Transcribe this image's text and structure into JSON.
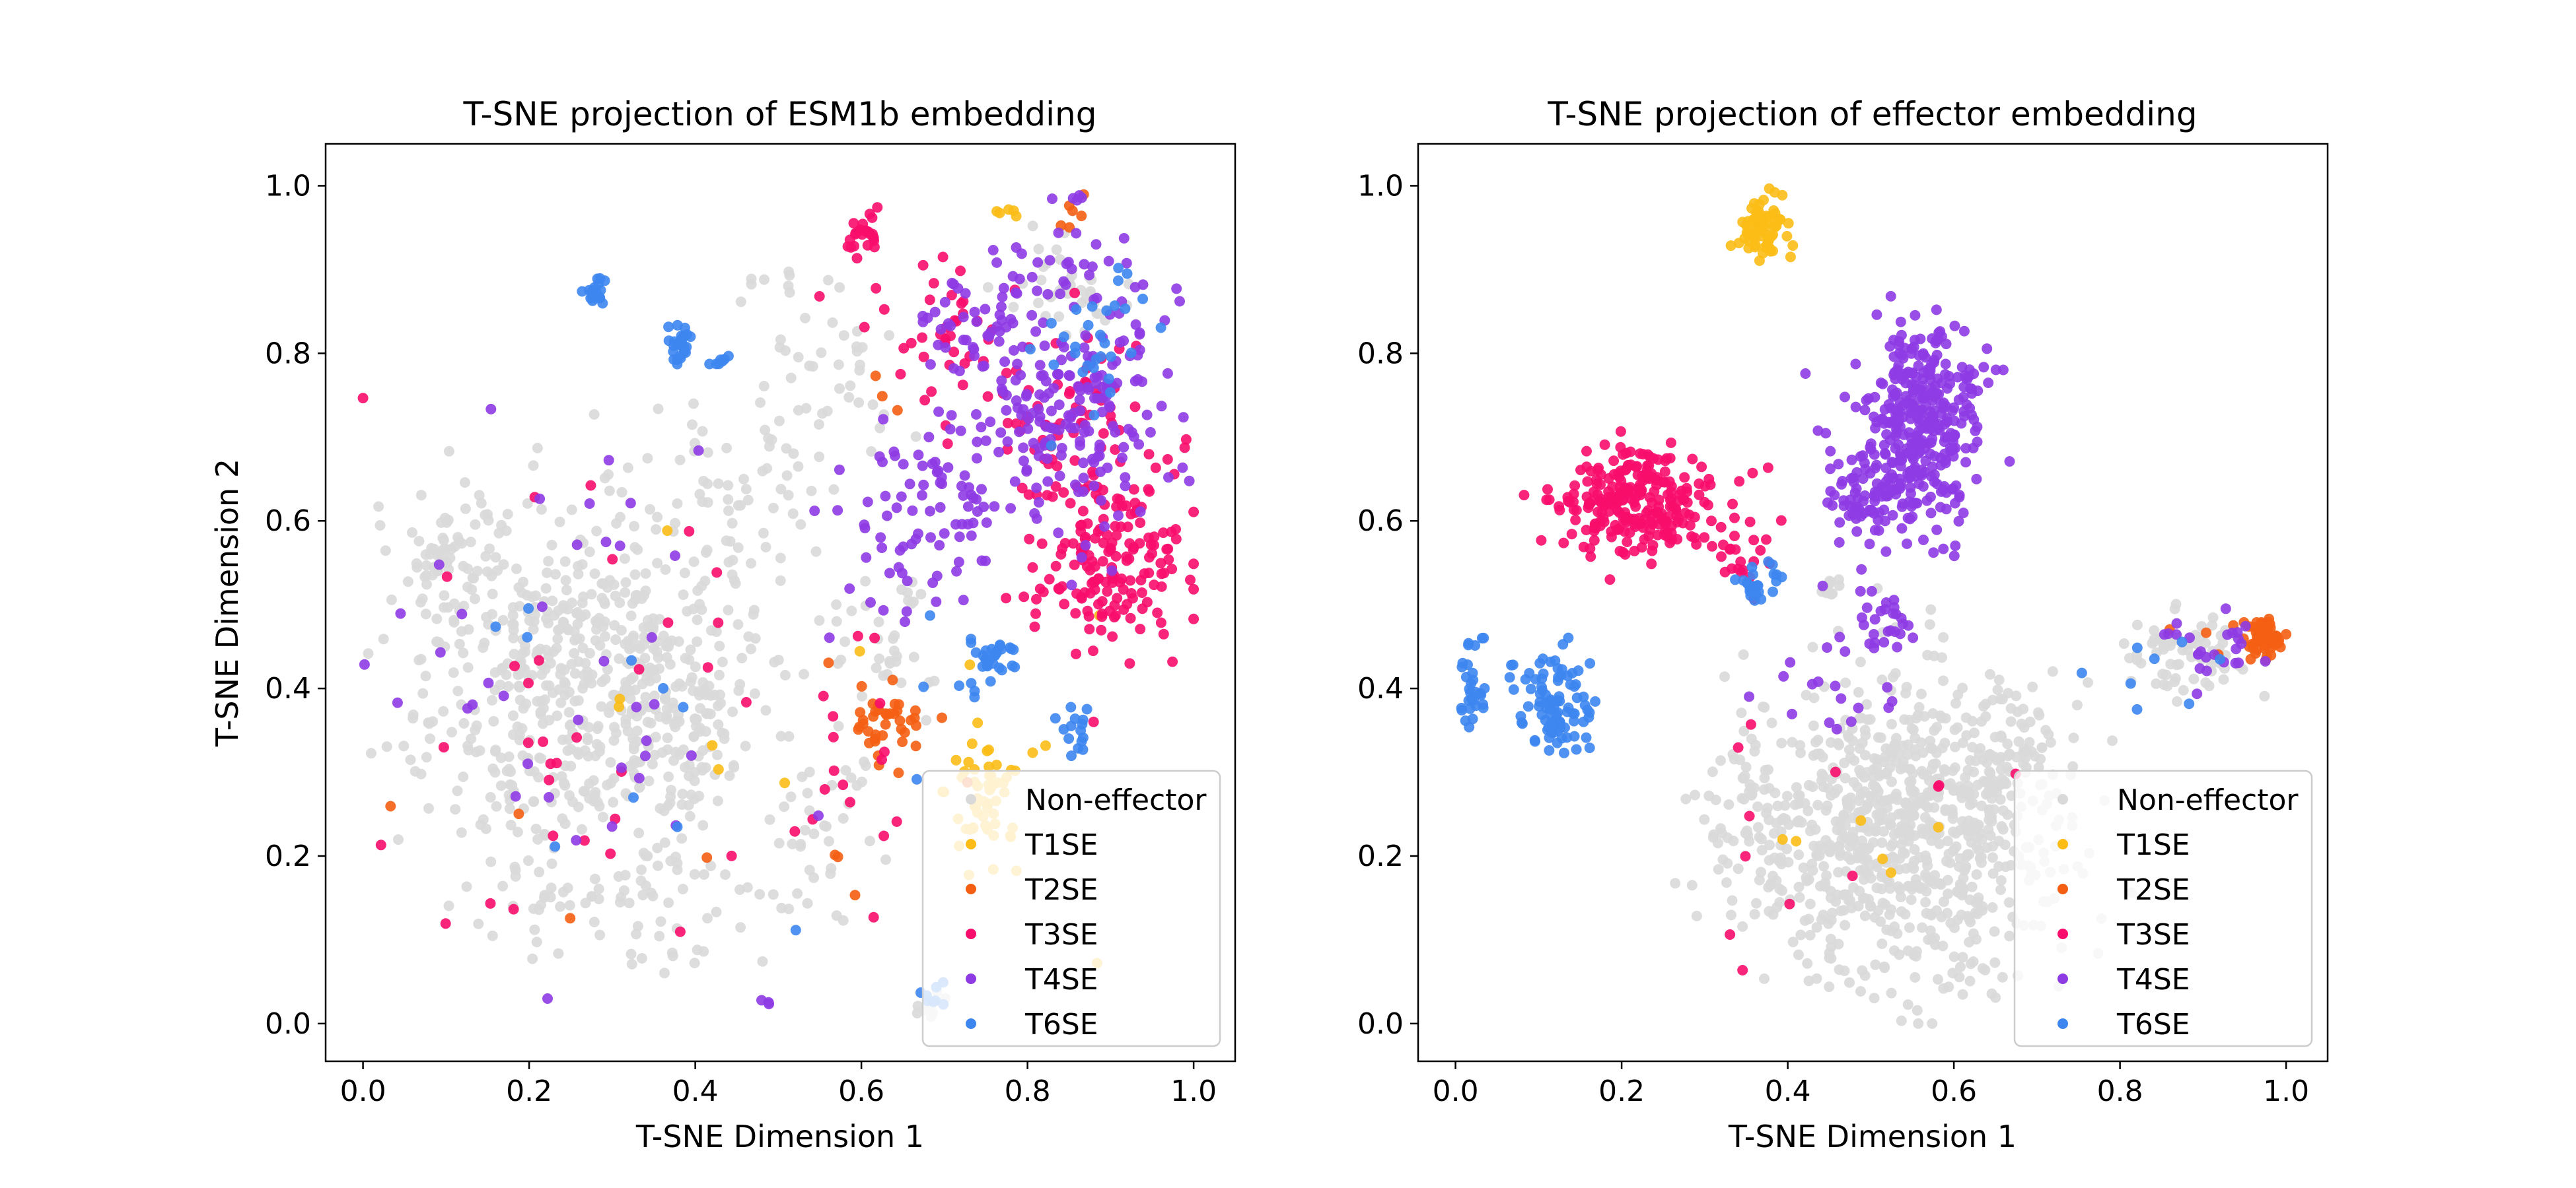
{
  "chart_data": [
    {
      "type": "scatter",
      "title": "T-SNE projection of ESM1b embedding",
      "xlabel": "T-SNE Dimension 1",
      "ylabel": "T-SNE Dimension 2",
      "xlim": [
        -0.045,
        1.05
      ],
      "ylim": [
        -0.045,
        1.05
      ],
      "xticks": [
        "0.0",
        "0.2",
        "0.4",
        "0.6",
        "0.8",
        "1.0"
      ],
      "yticks": [
        "0.0",
        "0.2",
        "0.4",
        "0.6",
        "0.8",
        "1.0"
      ],
      "grid": false,
      "legend_position": "lower-right",
      "series": [
        {
          "name": "Non-effector",
          "color": "#d9d9d9",
          "clusters": [
            {
              "cx": 0.24,
              "cy": 0.4,
              "sx": 0.09,
              "sy": 0.11,
              "n": 520
            },
            {
              "cx": 0.1,
              "cy": 0.55,
              "sx": 0.03,
              "sy": 0.04,
              "n": 60
            },
            {
              "cx": 0.38,
              "cy": 0.38,
              "sx": 0.05,
              "sy": 0.09,
              "n": 120
            },
            {
              "cx": 0.45,
              "cy": 0.62,
              "sx": 0.05,
              "sy": 0.06,
              "n": 60
            },
            {
              "cx": 0.55,
              "cy": 0.75,
              "sx": 0.04,
              "sy": 0.06,
              "n": 40
            },
            {
              "cx": 0.86,
              "cy": 0.88,
              "sx": 0.04,
              "sy": 0.03,
              "n": 40
            },
            {
              "cx": 0.62,
              "cy": 0.45,
              "sx": 0.04,
              "sy": 0.05,
              "n": 40
            },
            {
              "cx": 0.32,
              "cy": 0.15,
              "sx": 0.07,
              "sy": 0.05,
              "n": 60
            },
            {
              "cx": 0.55,
              "cy": 0.2,
              "sx": 0.04,
              "sy": 0.06,
              "n": 40
            },
            {
              "cx": 0.49,
              "cy": 0.88,
              "sx": 0.02,
              "sy": 0.01,
              "n": 8
            },
            {
              "cx": 0.68,
              "cy": 0.02,
              "sx": 0.01,
              "sy": 0.01,
              "n": 10
            }
          ]
        },
        {
          "name": "T1SE",
          "color": "#fbbc16",
          "clusters": [
            {
              "cx": 0.75,
              "cy": 0.27,
              "sx": 0.025,
              "sy": 0.04,
              "n": 55
            },
            {
              "cx": 0.78,
              "cy": 0.97,
              "sx": 0.015,
              "sy": 0.004,
              "n": 5
            },
            {
              "cx": 0.55,
              "cy": 0.35,
              "sx": 0.25,
              "sy": 0.2,
              "n": 10
            }
          ]
        },
        {
          "name": "T2SE",
          "color": "#f45f14",
          "clusters": [
            {
              "cx": 0.63,
              "cy": 0.36,
              "sx": 0.025,
              "sy": 0.02,
              "n": 38
            },
            {
              "cx": 0.85,
              "cy": 0.96,
              "sx": 0.01,
              "sy": 0.015,
              "n": 6
            },
            {
              "cx": 0.62,
              "cy": 0.75,
              "sx": 0.01,
              "sy": 0.01,
              "n": 3
            },
            {
              "cx": 0.62,
              "cy": 0.25,
              "sx": 0.06,
              "sy": 0.08,
              "n": 6
            },
            {
              "cx": 0.25,
              "cy": 0.2,
              "sx": 0.06,
              "sy": 0.06,
              "n": 4
            }
          ]
        },
        {
          "name": "T3SE",
          "color": "#f80d6c",
          "clusters": [
            {
              "cx": 0.9,
              "cy": 0.56,
              "sx": 0.045,
              "sy": 0.06,
              "n": 180
            },
            {
              "cx": 0.84,
              "cy": 0.73,
              "sx": 0.05,
              "sy": 0.05,
              "n": 60
            },
            {
              "cx": 0.6,
              "cy": 0.94,
              "sx": 0.012,
              "sy": 0.012,
              "n": 25
            },
            {
              "cx": 0.7,
              "cy": 0.82,
              "sx": 0.05,
              "sy": 0.05,
              "n": 40
            },
            {
              "cx": 0.25,
              "cy": 0.35,
              "sx": 0.15,
              "sy": 0.15,
              "n": 35
            },
            {
              "cx": 0.6,
              "cy": 0.33,
              "sx": 0.05,
              "sy": 0.07,
              "n": 15
            }
          ]
        },
        {
          "name": "T4SE",
          "color": "#8e3be4",
          "clusters": [
            {
              "cx": 0.85,
              "cy": 0.75,
              "sx": 0.06,
              "sy": 0.1,
              "n": 230
            },
            {
              "cx": 0.68,
              "cy": 0.6,
              "sx": 0.05,
              "sy": 0.05,
              "n": 80
            },
            {
              "cx": 0.73,
              "cy": 0.84,
              "sx": 0.03,
              "sy": 0.03,
              "n": 30
            },
            {
              "cx": 0.85,
              "cy": 0.99,
              "sx": 0.012,
              "sy": 0.01,
              "n": 5
            },
            {
              "cx": 0.3,
              "cy": 0.4,
              "sx": 0.13,
              "sy": 0.15,
              "n": 40
            },
            {
              "cx": 0.49,
              "cy": 0.03,
              "sx": 0.007,
              "sy": 0.005,
              "n": 3
            }
          ]
        },
        {
          "name": "T6SE",
          "color": "#3d86ef",
          "clusters": [
            {
              "cx": 0.28,
              "cy": 0.875,
              "sx": 0.005,
              "sy": 0.008,
              "n": 20
            },
            {
              "cx": 0.38,
              "cy": 0.81,
              "sx": 0.008,
              "sy": 0.012,
              "n": 25
            },
            {
              "cx": 0.43,
              "cy": 0.79,
              "sx": 0.006,
              "sy": 0.004,
              "n": 7
            },
            {
              "cx": 0.76,
              "cy": 0.43,
              "sx": 0.012,
              "sy": 0.015,
              "n": 25
            },
            {
              "cx": 0.86,
              "cy": 0.36,
              "sx": 0.012,
              "sy": 0.02,
              "n": 15
            },
            {
              "cx": 0.88,
              "cy": 0.82,
              "sx": 0.04,
              "sy": 0.05,
              "n": 30
            },
            {
              "cx": 0.69,
              "cy": 0.03,
              "sx": 0.008,
              "sy": 0.01,
              "n": 8
            },
            {
              "cx": 0.72,
              "cy": 0.4,
              "sx": 0.04,
              "sy": 0.05,
              "n": 10
            },
            {
              "cx": 0.35,
              "cy": 0.35,
              "sx": 0.15,
              "sy": 0.15,
              "n": 10
            }
          ]
        }
      ]
    },
    {
      "type": "scatter",
      "title": "T-SNE projection of effector embedding",
      "xlabel": "T-SNE Dimension 1",
      "ylabel": "",
      "xlim": [
        -0.045,
        1.05
      ],
      "ylim": [
        -0.045,
        1.05
      ],
      "xticks": [
        "0.0",
        "0.2",
        "0.4",
        "0.6",
        "0.8",
        "1.0"
      ],
      "yticks": [
        "0.0",
        "0.2",
        "0.4",
        "0.6",
        "0.8",
        "1.0"
      ],
      "grid": false,
      "legend_position": "lower-right",
      "series": [
        {
          "name": "Non-effector",
          "color": "#d9d9d9",
          "clusters": [
            {
              "cx": 0.55,
              "cy": 0.23,
              "sx": 0.085,
              "sy": 0.09,
              "n": 700
            },
            {
              "cx": 0.4,
              "cy": 0.25,
              "sx": 0.05,
              "sy": 0.06,
              "n": 120
            },
            {
              "cx": 0.66,
              "cy": 0.3,
              "sx": 0.04,
              "sy": 0.06,
              "n": 80
            },
            {
              "cx": 0.88,
              "cy": 0.44,
              "sx": 0.035,
              "sy": 0.025,
              "n": 80
            },
            {
              "cx": 0.45,
              "cy": 0.52,
              "sx": 0.01,
              "sy": 0.01,
              "n": 10
            }
          ]
        },
        {
          "name": "T1SE",
          "color": "#fbbc16",
          "clusters": [
            {
              "cx": 0.37,
              "cy": 0.95,
              "sx": 0.014,
              "sy": 0.02,
              "n": 70
            },
            {
              "cx": 0.5,
              "cy": 0.15,
              "sx": 0.1,
              "sy": 0.08,
              "n": 6
            }
          ]
        },
        {
          "name": "T2SE",
          "color": "#f45f14",
          "clusters": [
            {
              "cx": 0.975,
              "cy": 0.46,
              "sx": 0.01,
              "sy": 0.012,
              "n": 60
            },
            {
              "cx": 0.9,
              "cy": 0.45,
              "sx": 0.03,
              "sy": 0.03,
              "n": 6
            }
          ]
        },
        {
          "name": "T3SE",
          "color": "#f80d6c",
          "clusters": [
            {
              "cx": 0.22,
              "cy": 0.62,
              "sx": 0.05,
              "sy": 0.03,
              "n": 260
            },
            {
              "cx": 0.34,
              "cy": 0.56,
              "sx": 0.02,
              "sy": 0.02,
              "n": 20
            },
            {
              "cx": 0.45,
              "cy": 0.22,
              "sx": 0.1,
              "sy": 0.1,
              "n": 12
            }
          ]
        },
        {
          "name": "T4SE",
          "color": "#8e3be4",
          "clusters": [
            {
              "cx": 0.56,
              "cy": 0.71,
              "sx": 0.035,
              "sy": 0.06,
              "n": 360
            },
            {
              "cx": 0.49,
              "cy": 0.63,
              "sx": 0.025,
              "sy": 0.025,
              "n": 60
            },
            {
              "cx": 0.51,
              "cy": 0.48,
              "sx": 0.02,
              "sy": 0.015,
              "n": 25
            },
            {
              "cx": 0.92,
              "cy": 0.45,
              "sx": 0.035,
              "sy": 0.02,
              "n": 25
            },
            {
              "cx": 0.45,
              "cy": 0.4,
              "sx": 0.05,
              "sy": 0.05,
              "n": 20
            }
          ]
        },
        {
          "name": "T6SE",
          "color": "#3d86ef",
          "clusters": [
            {
              "cx": 0.12,
              "cy": 0.38,
              "sx": 0.022,
              "sy": 0.03,
              "n": 90
            },
            {
              "cx": 0.02,
              "cy": 0.4,
              "sx": 0.008,
              "sy": 0.03,
              "n": 30
            },
            {
              "cx": 0.36,
              "cy": 0.53,
              "sx": 0.015,
              "sy": 0.015,
              "n": 25
            },
            {
              "cx": 0.85,
              "cy": 0.42,
              "sx": 0.05,
              "sy": 0.03,
              "n": 8
            }
          ]
        }
      ]
    }
  ]
}
